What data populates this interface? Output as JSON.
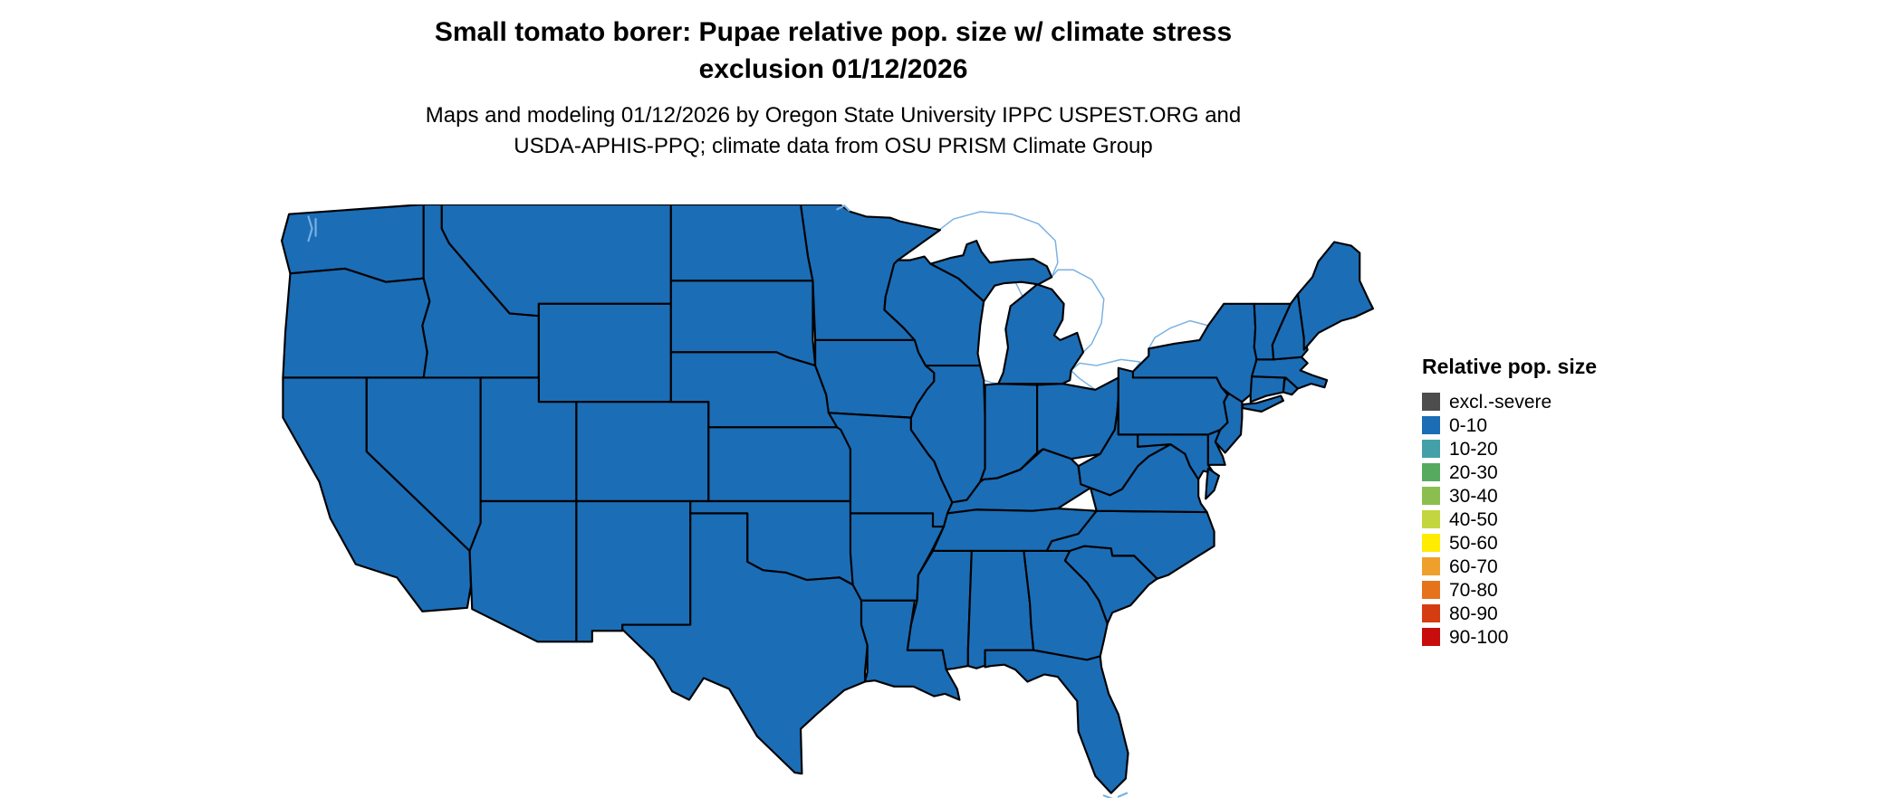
{
  "header": {
    "title_line1": "Small tomato borer: Pupae relative pop. size w/ climate stress",
    "title_line2": "exclusion 01/12/2026",
    "subtitle_line1": "Maps and modeling 01/12/2026 by Oregon State University IPPC USPEST.ORG and",
    "subtitle_line2": "USDA-APHIS-PPQ; climate data from OSU PRISM Climate Group"
  },
  "legend": {
    "title": "Relative pop. size",
    "entries": [
      {
        "label": "excl.-severe",
        "color": "#4D4D4D"
      },
      {
        "label": "0-10",
        "color": "#1B6DB6"
      },
      {
        "label": "10-20",
        "color": "#44A0A8"
      },
      {
        "label": "20-30",
        "color": "#56AA60"
      },
      {
        "label": "30-40",
        "color": "#8CBE4F"
      },
      {
        "label": "40-50",
        "color": "#C3D63F"
      },
      {
        "label": "50-60",
        "color": "#FFEC00"
      },
      {
        "label": "60-70",
        "color": "#EFA02C"
      },
      {
        "label": "70-80",
        "color": "#E5731C"
      },
      {
        "label": "80-90",
        "color": "#D43D12"
      },
      {
        "label": "90-100",
        "color": "#C80D0D"
      }
    ]
  },
  "map": {
    "region": "Continental United States",
    "all_states_class": "0-10",
    "date_shown": "01/12/2026"
  },
  "colors": {
    "page_bg": "#ffffff",
    "text": "#000000",
    "map_fill": "#1B6DB6",
    "map_stroke": "#000000",
    "water_line": "#79B1E3"
  }
}
